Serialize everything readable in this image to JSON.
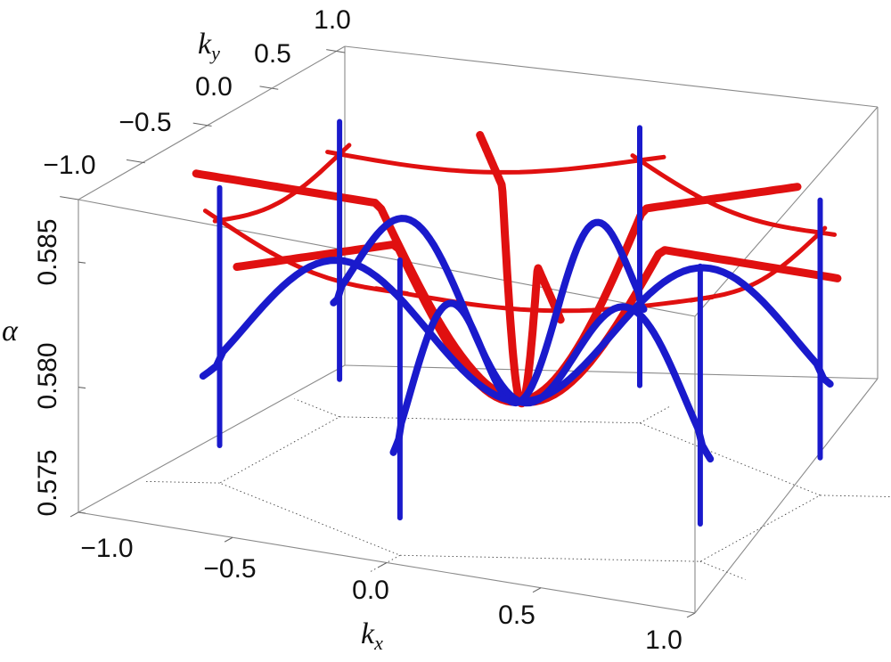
{
  "chart_data": {
    "type": "3d-curves",
    "xlabel": "k",
    "xlabel_sub": "x",
    "ylabel": "k",
    "ylabel_sub": "y",
    "zlabel": "α",
    "xlim": [
      -1.0,
      1.0
    ],
    "ylim": [
      -1.0,
      1.0
    ],
    "zlim": [
      0.575,
      0.5875
    ],
    "x_ticks": [
      "−1.0",
      "−0.5",
      "0.0",
      "0.5",
      "1.0"
    ],
    "y_ticks": [
      "−1.0",
      "−0.5",
      "0.0",
      "0.5",
      "1.0"
    ],
    "z_ticks": [
      "0.575",
      "0.580",
      "0.585"
    ],
    "series": [
      {
        "color": "#1a1acc",
        "style": "vertical lines at the six hexagon vertices and oscillating curves through the origin"
      },
      {
        "color": "#e01010",
        "style": "bowl-shaped curves through the origin, dipping to α ≈ 0.5785, and curves along the hexagon edges at α ≈ 0.585"
      }
    ]
  }
}
